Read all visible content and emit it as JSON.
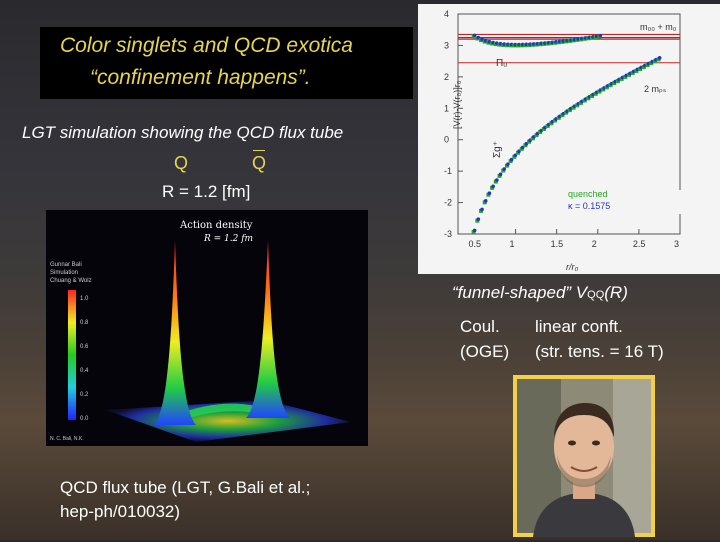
{
  "title": {
    "line1": "Color singlets and QCD exotica",
    "line2": "“confinement happens”."
  },
  "lgt_caption": "LGT simulation showing the QCD flux tube",
  "quarks": {
    "q": "Q",
    "qbar": "Q"
  },
  "separation": "R = 1.2 [fm]",
  "action_density_figure": {
    "title": "Action density",
    "subtitle": "R = 1.2 fm",
    "side_label": [
      "Gunnar Bali",
      "Simulation",
      "Chuang & Wolz"
    ],
    "scale_ticks": [
      "1.0",
      "0.8",
      "0.6",
      "0.4",
      "0.2",
      "0.0"
    ],
    "footer": "N. C. Bali, N.K."
  },
  "potential_plot": {
    "ylabel": "[V(r)-V(r₀)]r₀",
    "xlabel": "r/r₀",
    "xticks": [
      "0.5",
      "1",
      "1.5",
      "2",
      "2.5",
      "3"
    ],
    "yticks": [
      "4",
      "3",
      "2",
      "1",
      "0",
      "-1",
      "-2",
      "-3"
    ],
    "xlim": [
      0.3,
      3.0
    ],
    "ylim": [
      -3,
      4
    ],
    "labels": {
      "top_right": "m₀₀ + m₀",
      "pi_u": "Πᵤ",
      "two_mps": "2 mₚₛ",
      "sigma_g": "Σg⁺"
    },
    "legend": {
      "quenched": "quenched",
      "kappa": "κ = 0.1575"
    },
    "colors": {
      "quenched": "#22aa22",
      "kappa": "#2233cc",
      "threshold": "#cc2222",
      "threshold2": "#3344aa"
    },
    "chart_data": {
      "type": "scatter",
      "x_range": [
        0.3,
        3.0
      ],
      "y_range": [
        -3,
        4
      ]
    }
  },
  "funnel_caption": {
    "main": "“funnel-shaped” V",
    "sub": "QQ",
    "tail": "(R)"
  },
  "coul": "Coul.",
  "oge": "(OGE)",
  "linear": "linear conft.",
  "str_tens": "(str. tens. = 16 T)",
  "flux_caption": {
    "line1": "QCD flux tube (LGT, G.Bali et al.;",
    "line2": "hep-ph/010032)"
  }
}
